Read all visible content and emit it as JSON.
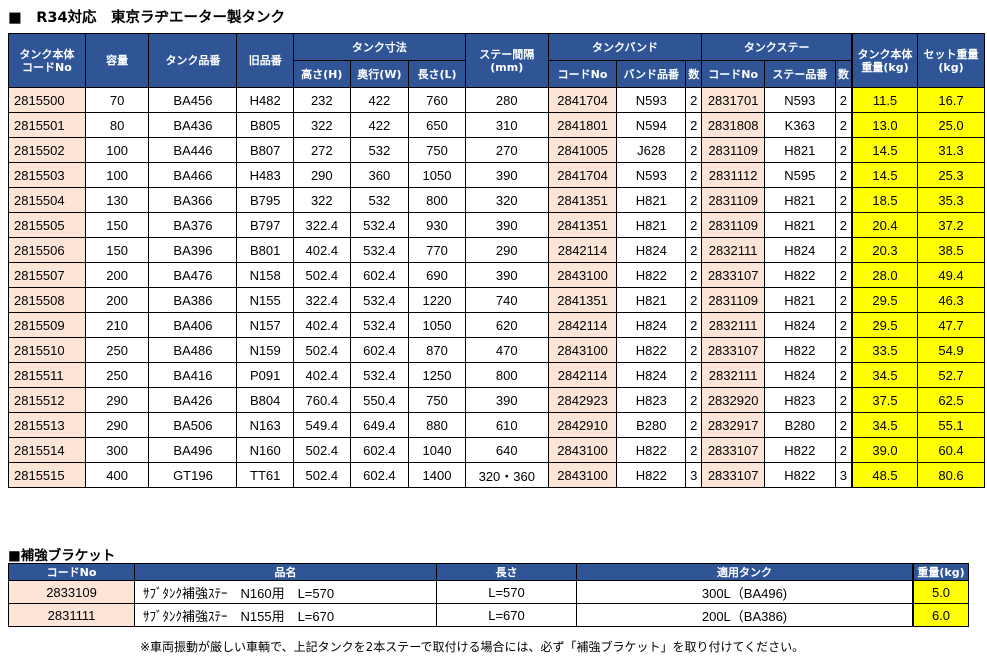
{
  "title": "■　R34対応　東京ラヂエーター製タンク",
  "main_table": {
    "headers": {
      "code": "タンク本体\nコードNo",
      "capacity": "容量",
      "model": "タンク品番",
      "old": "旧品番",
      "dims": "タンク寸法",
      "height": "高さ(H)",
      "depth": "奥行(W)",
      "length": "長さ(L)",
      "stay_spacing": "ステー間隔\n(mm)",
      "band": "タンクバンド",
      "band_code": "コードNo",
      "band_model": "バンド品番",
      "band_qty": "数",
      "stay": "タンクステー",
      "stay_code": "コードNo",
      "stay_model": "ステー品番",
      "stay_qty": "数",
      "body_weight": "タンク本体\n重量(kg)",
      "set_weight": "セット重量\n(kg)"
    },
    "rows": [
      [
        "2815500",
        "70",
        "BA456",
        "H482",
        "232",
        "422",
        "760",
        "280",
        "2841704",
        "N593",
        "2",
        "2831701",
        "N593",
        "2",
        "11.5",
        "16.7"
      ],
      [
        "2815501",
        "80",
        "BA436",
        "B805",
        "322",
        "422",
        "650",
        "310",
        "2841801",
        "N594",
        "2",
        "2831808",
        "K363",
        "2",
        "13.0",
        "25.0"
      ],
      [
        "2815502",
        "100",
        "BA446",
        "B807",
        "272",
        "532",
        "750",
        "270",
        "2841005",
        "J628",
        "2",
        "2831109",
        "H821",
        "2",
        "14.5",
        "31.3"
      ],
      [
        "2815503",
        "100",
        "BA466",
        "H483",
        "290",
        "360",
        "1050",
        "390",
        "2841704",
        "N593",
        "2",
        "2831112",
        "N595",
        "2",
        "14.5",
        "25.3"
      ],
      [
        "2815504",
        "130",
        "BA366",
        "B795",
        "322",
        "532",
        "800",
        "320",
        "2841351",
        "H821",
        "2",
        "2831109",
        "H821",
        "2",
        "18.5",
        "35.3"
      ],
      [
        "2815505",
        "150",
        "BA376",
        "B797",
        "322.4",
        "532.4",
        "930",
        "390",
        "2841351",
        "H821",
        "2",
        "2831109",
        "H821",
        "2",
        "20.4",
        "37.2"
      ],
      [
        "2815506",
        "150",
        "BA396",
        "B801",
        "402.4",
        "532.4",
        "770",
        "290",
        "2842114",
        "H824",
        "2",
        "2832111",
        "H824",
        "2",
        "20.3",
        "38.5"
      ],
      [
        "2815507",
        "200",
        "BA476",
        "N158",
        "502.4",
        "602.4",
        "690",
        "390",
        "2843100",
        "H822",
        "2",
        "2833107",
        "H822",
        "2",
        "28.0",
        "49.4"
      ],
      [
        "2815508",
        "200",
        "BA386",
        "N155",
        "322.4",
        "532.4",
        "1220",
        "740",
        "2841351",
        "H821",
        "2",
        "2831109",
        "H821",
        "2",
        "29.5",
        "46.3"
      ],
      [
        "2815509",
        "210",
        "BA406",
        "N157",
        "402.4",
        "532.4",
        "1050",
        "620",
        "2842114",
        "H824",
        "2",
        "2832111",
        "H824",
        "2",
        "29.5",
        "47.7"
      ],
      [
        "2815510",
        "250",
        "BA486",
        "N159",
        "502.4",
        "602.4",
        "870",
        "470",
        "2843100",
        "H822",
        "2",
        "2833107",
        "H822",
        "2",
        "33.5",
        "54.9"
      ],
      [
        "2815511",
        "250",
        "BA416",
        "P091",
        "402.4",
        "532.4",
        "1250",
        "800",
        "2842114",
        "H824",
        "2",
        "2832111",
        "H824",
        "2",
        "34.5",
        "52.7"
      ],
      [
        "2815512",
        "290",
        "BA426",
        "B804",
        "760.4",
        "550.4",
        "750",
        "390",
        "2842923",
        "H823",
        "2",
        "2832920",
        "H823",
        "2",
        "37.5",
        "62.5"
      ],
      [
        "2815513",
        "290",
        "BA506",
        "N163",
        "549.4",
        "649.4",
        "880",
        "610",
        "2842910",
        "B280",
        "2",
        "2832917",
        "B280",
        "2",
        "34.5",
        "55.1"
      ],
      [
        "2815514",
        "300",
        "BA496",
        "N160",
        "502.4",
        "602.4",
        "1040",
        "640",
        "2843100",
        "H822",
        "2",
        "2833107",
        "H822",
        "2",
        "39.0",
        "60.4"
      ],
      [
        "2815515",
        "400",
        "GT196",
        "TT61",
        "502.4",
        "602.4",
        "1400",
        "320・360",
        "2843100",
        "H822",
        "3",
        "2833107",
        "H822",
        "3",
        "48.5",
        "80.6"
      ]
    ]
  },
  "bracket": {
    "title": "■補強ブラケット",
    "headers": {
      "code": "コードNo",
      "name": "品名",
      "length": "長さ",
      "tank": "適用タンク",
      "weight": "重量(kg)"
    },
    "rows": [
      [
        "2833109",
        "ｻﾌﾞﾀﾝｸ補強ｽﾃｰ　N160用　L=570",
        "L=570",
        "300L（BA496)",
        "5.0"
      ],
      [
        "2831111",
        "ｻﾌﾞﾀﾝｸ補強ｽﾃｰ　N155用　L=670",
        "L=670",
        "200L（BA386)",
        "6.0"
      ]
    ]
  },
  "note": "※車両振動が厳しい車輌で、上記タンクを2本ステーで取付ける場合には、必ず「補強ブラケット」を取り付けてください。",
  "colors": {
    "header_bg": "#2f5597",
    "pink": "#fce4d6",
    "yellow": "#ffff00"
  }
}
